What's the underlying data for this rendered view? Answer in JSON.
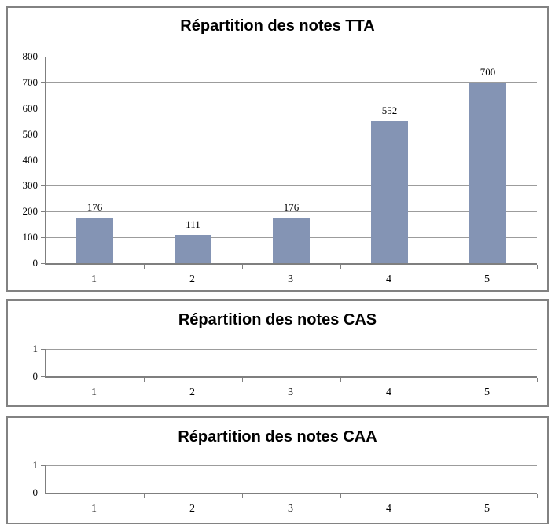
{
  "colors": {
    "bar": "#8494B4",
    "gridline": "#9C9C9C",
    "axis": "#7F7F7F",
    "frame": "#828282",
    "title": "#000000"
  },
  "chart_data": [
    {
      "type": "bar",
      "title": "Répartition des notes TTA",
      "categories": [
        "1",
        "2",
        "3",
        "4",
        "5"
      ],
      "values": [
        176,
        111,
        176,
        552,
        700
      ],
      "data_labels": [
        "176",
        "111",
        "176",
        "552",
        "700"
      ],
      "xlabel": "",
      "ylabel": "",
      "ylim": [
        0,
        800
      ],
      "yticks": [
        800,
        700,
        600,
        500,
        400,
        300,
        200,
        100,
        0
      ],
      "grid": true,
      "legend": "none"
    },
    {
      "type": "bar",
      "title": "Répartition des notes CAS",
      "categories": [
        "1",
        "2",
        "3",
        "4",
        "5"
      ],
      "values": [],
      "data_labels": [],
      "xlabel": "",
      "ylabel": "",
      "ylim": [
        0,
        1
      ],
      "yticks": [
        1,
        0
      ],
      "grid": true,
      "legend": "none"
    },
    {
      "type": "bar",
      "title": "Répartition des notes CAA",
      "categories": [
        "1",
        "2",
        "3",
        "4",
        "5"
      ],
      "values": [],
      "data_labels": [],
      "xlabel": "",
      "ylabel": "",
      "ylim": [
        0,
        1
      ],
      "yticks": [
        1,
        0
      ],
      "grid": true,
      "legend": "none"
    }
  ]
}
